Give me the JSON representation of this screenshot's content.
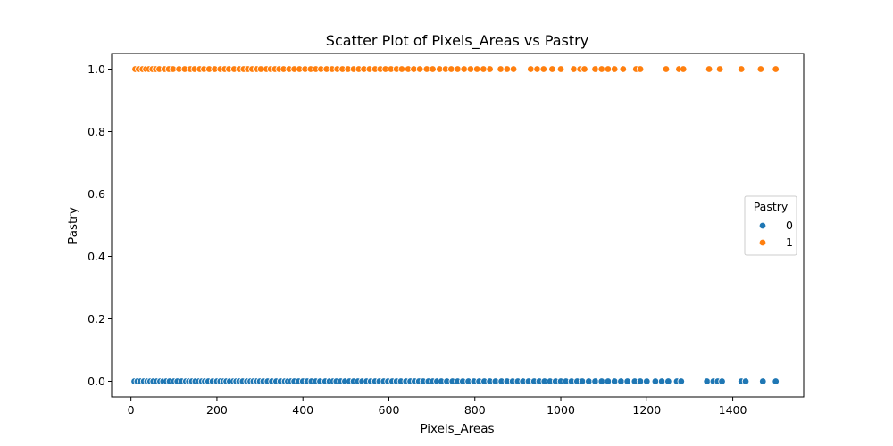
{
  "chart_data": {
    "type": "scatter",
    "title": "Scatter Plot of Pixels_Areas vs Pastry",
    "xlabel": "Pixels_Areas",
    "ylabel": "Pastry",
    "xlim": [
      -45,
      1565
    ],
    "ylim": [
      -0.05,
      1.05
    ],
    "xticks": [
      0,
      200,
      400,
      600,
      800,
      1000,
      1200,
      1400
    ],
    "xtick_labels": [
      "0",
      "200",
      "400",
      "600",
      "800",
      "1000",
      "1200",
      "1400"
    ],
    "yticks": [
      0.0,
      0.2,
      0.4,
      0.6,
      0.8,
      1.0
    ],
    "ytick_labels": [
      "0.0",
      "0.2",
      "0.4",
      "0.6",
      "0.8",
      "1.0"
    ],
    "grid": false,
    "legend": {
      "title": "Pastry",
      "position": "center-right",
      "entries": [
        "0",
        "1"
      ]
    },
    "series": [
      {
        "name": "0",
        "color": "#1f77b4",
        "y": 0,
        "x": [
          8,
          15,
          22,
          30,
          38,
          45,
          52,
          60,
          68,
          75,
          82,
          90,
          100,
          108,
          118,
          128,
          135,
          142,
          150,
          158,
          165,
          172,
          180,
          190,
          200,
          208,
          215,
          222,
          230,
          238,
          245,
          252,
          260,
          270,
          278,
          285,
          292,
          300,
          308,
          318,
          328,
          338,
          348,
          358,
          365,
          372,
          380,
          390,
          400,
          410,
          420,
          430,
          440,
          452,
          462,
          470,
          478,
          488,
          498,
          508,
          518,
          528,
          538,
          548,
          558,
          568,
          578,
          588,
          598,
          608,
          618,
          628,
          640,
          650,
          660,
          670,
          680,
          692,
          702,
          712,
          722,
          735,
          748,
          760,
          772,
          785,
          798,
          810,
          822,
          835,
          848,
          862,
          875,
          888,
          900,
          912,
          925,
          938,
          950,
          962,
          975,
          988,
          1000,
          1012,
          1025,
          1038,
          1050,
          1065,
          1080,
          1095,
          1110,
          1125,
          1140,
          1155,
          1172,
          1185,
          1200,
          1220,
          1235,
          1250,
          1270,
          1280,
          1340,
          1355,
          1365,
          1375,
          1420,
          1430,
          1470,
          1500
        ]
      },
      {
        "name": "1",
        "color": "#ff7f0e",
        "y": 1,
        "x": [
          10,
          18,
          27,
          35,
          42,
          50,
          58,
          66,
          78,
          88,
          98,
          112,
          125,
          138,
          148,
          160,
          170,
          182,
          195,
          208,
          218,
          228,
          240,
          252,
          262,
          272,
          282,
          292,
          302,
          315,
          325,
          335,
          345,
          355,
          368,
          380,
          392,
          405,
          418,
          430,
          442,
          455,
          468,
          480,
          492,
          505,
          518,
          530,
          542,
          555,
          568,
          580,
          592,
          605,
          618,
          630,
          645,
          658,
          672,
          688,
          702,
          718,
          732,
          745,
          760,
          775,
          790,
          805,
          820,
          835,
          860,
          875,
          890,
          930,
          945,
          960,
          980,
          1000,
          1030,
          1045,
          1055,
          1080,
          1095,
          1110,
          1125,
          1145,
          1175,
          1185,
          1245,
          1275,
          1285,
          1345,
          1370,
          1420,
          1465,
          1500
        ]
      }
    ]
  }
}
